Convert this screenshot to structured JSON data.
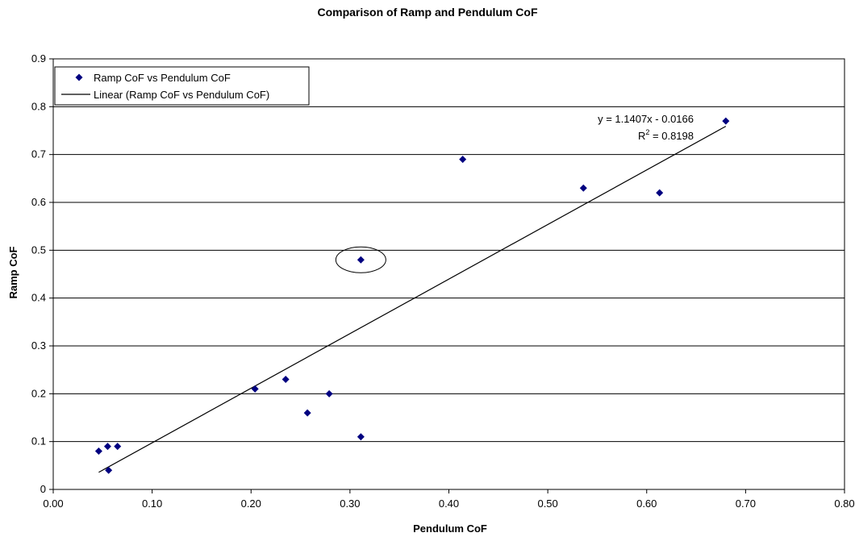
{
  "chart_data": {
    "type": "scatter",
    "title": "Comparison of Ramp and Pendulum CoF",
    "xlabel": "Pendulum CoF",
    "ylabel": "Ramp CoF",
    "xlim": [
      0,
      0.8
    ],
    "ylim": [
      0,
      0.9
    ],
    "x_ticks": [
      "0.00",
      "0.10",
      "0.20",
      "0.30",
      "0.40",
      "0.50",
      "0.60",
      "0.70",
      "0.80"
    ],
    "y_ticks": [
      "0",
      "0.1",
      "0.2",
      "0.3",
      "0.4",
      "0.5",
      "0.6",
      "0.7",
      "0.8",
      "0.9"
    ],
    "grid": "horizontal",
    "legend_position": "top-left",
    "marker_color": "#000080",
    "series": [
      {
        "name": "Ramp CoF vs Pendulum CoF",
        "points": [
          {
            "x": 0.046,
            "y": 0.08
          },
          {
            "x": 0.055,
            "y": 0.09
          },
          {
            "x": 0.065,
            "y": 0.09
          },
          {
            "x": 0.056,
            "y": 0.04
          },
          {
            "x": 0.204,
            "y": 0.21
          },
          {
            "x": 0.235,
            "y": 0.23
          },
          {
            "x": 0.257,
            "y": 0.16
          },
          {
            "x": 0.279,
            "y": 0.2
          },
          {
            "x": 0.311,
            "y": 0.11
          },
          {
            "x": 0.311,
            "y": 0.48
          },
          {
            "x": 0.414,
            "y": 0.69
          },
          {
            "x": 0.536,
            "y": 0.63
          },
          {
            "x": 0.613,
            "y": 0.62
          },
          {
            "x": 0.68,
            "y": 0.77
          }
        ]
      }
    ],
    "trendline": {
      "name": "Linear (Ramp CoF vs Pendulum CoF)",
      "slope": 1.1407,
      "intercept": -0.0166,
      "x_range": [
        0.046,
        0.68
      ],
      "equation": "y = 1.1407x - 0.0166",
      "r2_prefix": "R",
      "r2_exponent": "2",
      "r2_value": " = 0.8198"
    },
    "highlight": {
      "x": 0.311,
      "y": 0.48
    }
  }
}
